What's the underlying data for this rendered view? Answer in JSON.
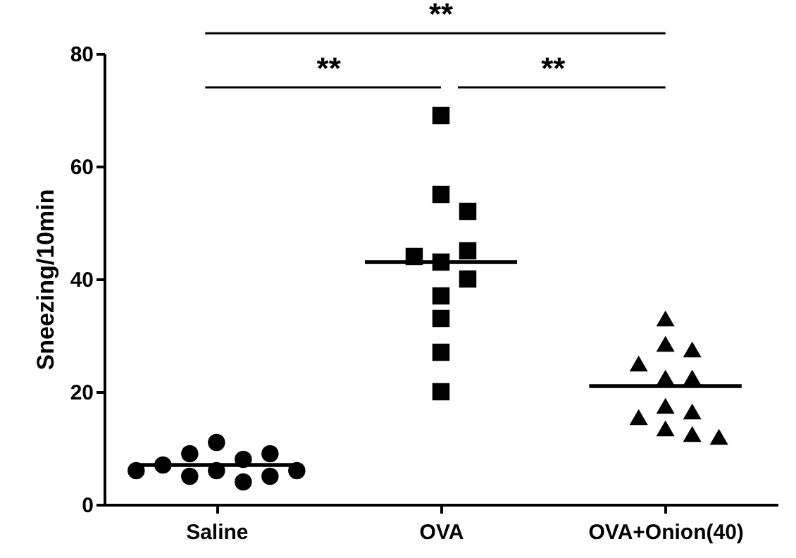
{
  "chart_data": {
    "type": "scatter",
    "categories": [
      "Saline",
      "OVA",
      "OVA+Onion(40)"
    ],
    "ylabel": "Sneezing/10min",
    "ylim": [
      0,
      80
    ],
    "yticks": [
      0,
      20,
      40,
      60,
      80
    ],
    "grid": false,
    "annotations": [
      "**",
      "**",
      "**"
    ],
    "series": [
      {
        "color": "#000000",
        "marker": "circle",
        "x": [
          "Saline",
          "Saline",
          "Saline",
          "Saline",
          "Saline",
          "Saline",
          "Saline",
          "Saline",
          "Saline",
          "Saline",
          "Saline"
        ],
        "values": [
          6,
          8,
          9,
          5,
          9,
          4,
          11,
          5,
          7,
          6,
          6
        ]
      },
      {
        "color": "#000000",
        "marker": "square",
        "x": [
          "OVA",
          "OVA",
          "OVA",
          "OVA",
          "OVA",
          "OVA",
          "OVA",
          "OVA",
          "OVA",
          "OVA",
          "OVA"
        ],
        "values": [
          69,
          55,
          52,
          43,
          45,
          44,
          40,
          37,
          33,
          27,
          20
        ]
      },
      {
        "color": "#000000",
        "marker": "triangle",
        "x": [
          "OVA+Onion(40)",
          "OVA+Onion(40)",
          "OVA+Onion(40)",
          "OVA+Onion(40)",
          "OVA+Onion(40)",
          "OVA+Onion(40)",
          "OVA+Onion(40)",
          "OVA+Onion(40)",
          "OVA+Onion(40)",
          "OVA+Onion(40)",
          "OVA+Onion(40)",
          "OVA+Onion(40)"
        ],
        "values": [
          33,
          28.5,
          27.5,
          25,
          22.5,
          22.5,
          17.5,
          16.5,
          15.5,
          13.5,
          12.5,
          12
        ]
      },
      {
        "type": "box",
        "color": "#000000",
        "boxes": [
          {
            "low": 7,
            "q1": 7,
            "median": 7,
            "q3": 7,
            "high": 7
          },
          {
            "low": 43,
            "q1": 43,
            "median": 43,
            "q3": 43,
            "high": 43
          },
          {
            "low": 21,
            "q1": 21,
            "median": 21,
            "q3": 21,
            "high": 21
          }
        ]
      }
    ]
  }
}
